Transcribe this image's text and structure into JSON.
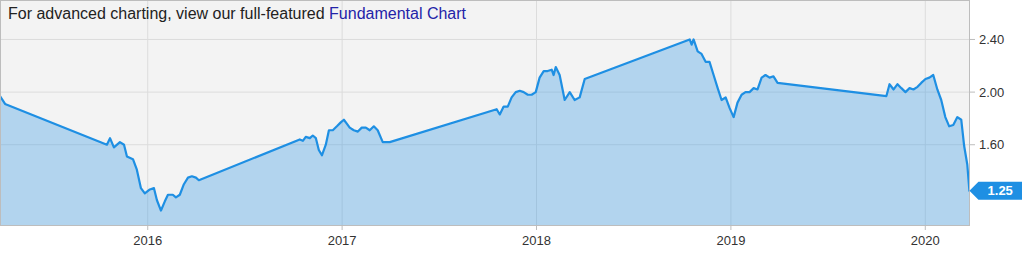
{
  "chart_data": {
    "type": "area",
    "title": "For advanced charting, view our full-featured",
    "title_link": "Fundamental Chart",
    "color": "#1e8fe3",
    "grid": true,
    "xlim": [
      2015.24,
      2020.23
    ],
    "xticks": [
      2016,
      2017,
      2018,
      2019,
      2020
    ],
    "ylim": [
      0.99,
      2.7
    ],
    "yticks": [
      {
        "value": 1.6,
        "label": "1.60"
      },
      {
        "value": 2.0,
        "label": "2.00"
      },
      {
        "value": 2.4,
        "label": "2.40"
      }
    ],
    "x": [
      2015.24,
      2015.266,
      2015.79,
      2015.806,
      2015.826,
      2015.857,
      2015.878,
      2015.893,
      2015.924,
      2015.944,
      2015.965,
      2015.985,
      2016.011,
      2016.032,
      2016.047,
      2016.068,
      2016.088,
      2016.104,
      2016.129,
      2016.145,
      2016.165,
      2016.186,
      2016.207,
      2016.227,
      2016.248,
      2016.263,
      2016.782,
      2016.798,
      2016.813,
      2016.834,
      2016.849,
      2016.865,
      2016.88,
      2016.896,
      2016.916,
      2016.932,
      2016.952,
      2016.973,
      2016.993,
      2017.009,
      2017.024,
      2017.039,
      2017.06,
      2017.081,
      2017.101,
      2017.122,
      2017.142,
      2017.163,
      2017.183,
      2017.209,
      2017.245,
      2017.795,
      2017.811,
      2017.831,
      2017.852,
      2017.872,
      2017.893,
      2017.914,
      2017.934,
      2017.955,
      2017.975,
      2017.996,
      2018.016,
      2018.037,
      2018.057,
      2018.078,
      2018.088,
      2018.099,
      2018.119,
      2018.145,
      2018.171,
      2018.196,
      2018.222,
      2018.248,
      2018.788,
      2018.798,
      2018.808,
      2018.829,
      2018.849,
      2018.87,
      2018.89,
      2018.911,
      2018.932,
      2018.952,
      2018.973,
      2018.993,
      2019.014,
      2019.034,
      2019.055,
      2019.075,
      2019.096,
      2019.117,
      2019.137,
      2019.158,
      2019.178,
      2019.199,
      2019.219,
      2019.24,
      2019.8,
      2019.816,
      2019.837,
      2019.857,
      2019.877,
      2019.898,
      2019.919,
      2019.939,
      2019.96,
      2019.979,
      2020.001,
      2020.021,
      2020.041,
      2020.062,
      2020.082,
      2020.103,
      2020.123,
      2020.144,
      2020.165,
      2020.185,
      2020.2,
      2020.216,
      2020.227
    ],
    "values": [
      1.97,
      1.91,
      1.6,
      1.65,
      1.58,
      1.62,
      1.6,
      1.51,
      1.49,
      1.41,
      1.27,
      1.23,
      1.26,
      1.27,
      1.18,
      1.1,
      1.17,
      1.22,
      1.22,
      1.2,
      1.22,
      1.3,
      1.35,
      1.36,
      1.35,
      1.33,
      1.64,
      1.63,
      1.66,
      1.65,
      1.67,
      1.65,
      1.56,
      1.52,
      1.6,
      1.71,
      1.71,
      1.74,
      1.77,
      1.79,
      1.76,
      1.73,
      1.71,
      1.7,
      1.73,
      1.73,
      1.71,
      1.74,
      1.71,
      1.62,
      1.62,
      1.87,
      1.83,
      1.89,
      1.89,
      1.96,
      2.0,
      2.01,
      2.0,
      1.98,
      1.98,
      2.0,
      2.11,
      2.16,
      2.16,
      2.17,
      2.13,
      2.19,
      2.13,
      1.94,
      2.0,
      1.94,
      1.96,
      2.1,
      2.4,
      2.36,
      2.4,
      2.31,
      2.29,
      2.23,
      2.23,
      2.13,
      2.03,
      1.94,
      1.96,
      1.88,
      1.81,
      1.92,
      1.98,
      2.0,
      2.0,
      2.03,
      2.02,
      2.11,
      2.13,
      2.11,
      2.12,
      2.07,
      1.97,
      2.06,
      2.02,
      2.06,
      2.03,
      2.0,
      2.03,
      2.02,
      2.04,
      2.07,
      2.1,
      2.11,
      2.13,
      2.02,
      1.94,
      1.81,
      1.74,
      1.75,
      1.81,
      1.79,
      1.59,
      1.45,
      1.25
    ]
  }
}
